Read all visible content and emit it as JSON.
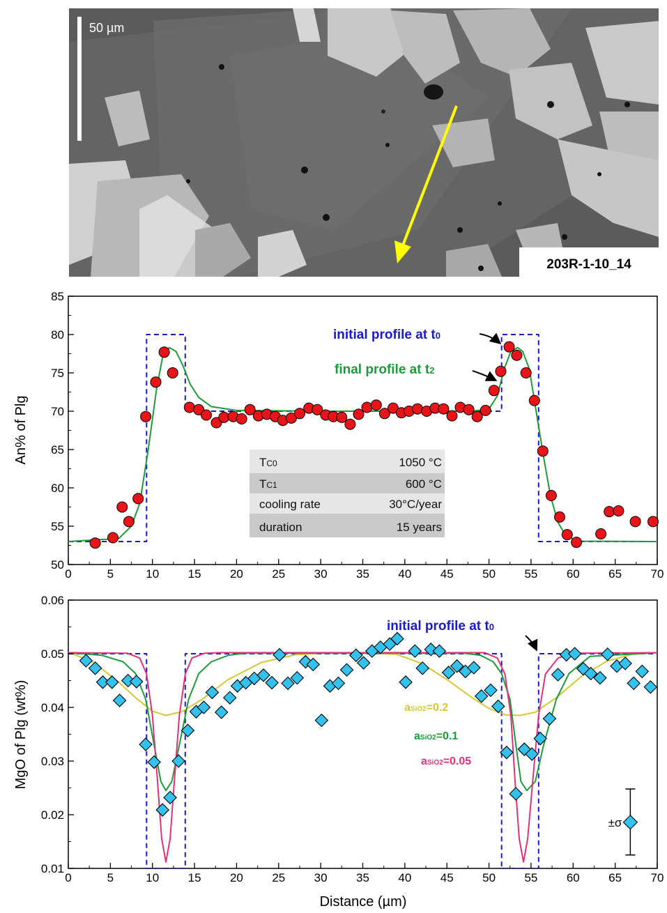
{
  "micrograph": {
    "scale_label": "50 µm",
    "sample_label": "203R-1-10_14"
  },
  "chart_data": [
    {
      "type": "scatter",
      "title": "",
      "xlabel": "",
      "ylabel": "An% of Plg",
      "xlim": [
        0,
        70
      ],
      "ylim": [
        50,
        85
      ],
      "x_ticks": [
        0,
        5,
        10,
        15,
        20,
        25,
        30,
        35,
        40,
        45,
        50,
        55,
        60,
        65,
        70
      ],
      "y_ticks": [
        50,
        55,
        60,
        65,
        70,
        75,
        80,
        85
      ],
      "grid": false,
      "annotations": [
        "initial profile at t",
        "final profile at t"
      ],
      "initial_subscript": "0",
      "final_subscript": "2",
      "params_table": [
        {
          "label": "T",
          "sub": "C0",
          "value": "1050 °C"
        },
        {
          "label": "T",
          "sub": "C1",
          "value": "600 °C"
        },
        {
          "label": "cooling rate",
          "sub": "",
          "value": "30°C/year"
        },
        {
          "label": "duration",
          "sub": "",
          "value": "15 years"
        }
      ],
      "series": [
        {
          "style": "dashed-blue",
          "x": [
            0,
            9.3,
            9.3,
            13.9,
            13.9,
            51.5,
            51.5,
            55.9,
            55.9,
            70
          ],
          "y": [
            53,
            53,
            80,
            80,
            70,
            70,
            80,
            80,
            53,
            53
          ]
        },
        {
          "style": "green-line",
          "x": [
            0,
            6,
            7.5,
            8.5,
            9.5,
            10.5,
            11.3,
            12,
            12.8,
            13.6,
            14.5,
            15.5,
            17,
            20,
            30,
            40,
            48,
            50,
            51,
            51.8,
            52.6,
            53.4,
            54,
            54.8,
            55.6,
            56.5,
            57.3,
            58.2,
            59,
            60,
            61,
            70
          ],
          "y": [
            53,
            53.4,
            55,
            58,
            65,
            73,
            77.6,
            78.3,
            77.8,
            76,
            73.5,
            71.8,
            70.6,
            70.1,
            70,
            70,
            70,
            70.3,
            72,
            75.5,
            77.8,
            78.3,
            77.8,
            75.5,
            70,
            64,
            59,
            55.5,
            54,
            53.3,
            53.05,
            53
          ]
        },
        {
          "style": "red-circles",
          "x": [
            3.2,
            5.3,
            6.4,
            7.2,
            8.3,
            9.2,
            10.4,
            11.4,
            12.4,
            14.4,
            15.5,
            16.4,
            17.6,
            18.5,
            19.6,
            20.6,
            21.6,
            22.6,
            23.6,
            24.6,
            25.5,
            26.5,
            27.5,
            28.6,
            29.6,
            30.6,
            31.5,
            32.5,
            33.5,
            34.5,
            35.5,
            36.6,
            37.6,
            38.6,
            39.6,
            40.5,
            41.5,
            42.6,
            43.6,
            44.6,
            45.6,
            46.6,
            47.6,
            48.6,
            49.6,
            50.6,
            51.4,
            52.4,
            53.3,
            54.4,
            55.4,
            56.4,
            57.4,
            58.4,
            59.3,
            60.4,
            63.3,
            64.3,
            65.4,
            67.4,
            69.5
          ],
          "y": [
            52.8,
            53.5,
            57.5,
            55.6,
            58.6,
            69.3,
            73.8,
            77.7,
            75,
            70.5,
            70.2,
            69.5,
            68.5,
            69.2,
            69.3,
            69,
            70.2,
            69.4,
            69.6,
            69.3,
            68.8,
            69.1,
            69.7,
            70.4,
            70.2,
            69.5,
            69.3,
            69.2,
            68.3,
            69.6,
            70.5,
            70.8,
            69.7,
            70.4,
            69.8,
            70,
            70.3,
            70,
            70.4,
            70.3,
            69.4,
            70.5,
            70.2,
            69.3,
            70.1,
            72.7,
            75.2,
            78.4,
            77.3,
            75,
            71.4,
            64.8,
            59,
            56.2,
            53.9,
            52.9,
            54,
            56.9,
            57,
            55.6,
            55.6
          ]
        }
      ]
    },
    {
      "type": "scatter",
      "title": "",
      "xlabel": "Distance (µm)",
      "ylabel": "MgO of Plg (wt%)",
      "xlim": [
        0,
        70
      ],
      "ylim": [
        0.01,
        0.06
      ],
      "x_ticks": [
        0,
        5,
        10,
        15,
        20,
        25,
        30,
        35,
        40,
        45,
        50,
        55,
        60,
        65,
        70
      ],
      "y_ticks": [
        "0.01",
        "0.02",
        "0.03",
        "0.04",
        "0.05",
        "0.06"
      ],
      "grid": false,
      "annotations": [
        "initial profile at t"
      ],
      "initial_subscript": "0",
      "curve_labels": [
        {
          "prefix": "a",
          "sub": "SiO2",
          "text": "=0.2",
          "color": "#d2c83a"
        },
        {
          "prefix": "a",
          "sub": "SiO2",
          "text": "=0.1",
          "color": "#1f9a3a"
        },
        {
          "prefix": "a",
          "sub": "SiO2",
          "text": "=0.05",
          "color": "#e0307a"
        }
      ],
      "error_bar": {
        "label": "±σ",
        "x": 66.8,
        "y": 0.0186,
        "low": 0.0125,
        "high": 0.0248
      },
      "series": [
        {
          "style": "dashed-blue",
          "x": [
            0,
            9.3,
            9.3,
            13.9,
            13.9,
            51.5,
            51.5,
            55.9,
            55.9,
            70
          ],
          "y": [
            0.05,
            0.05,
            0.01,
            0.01,
            0.05,
            0.05,
            0.01,
            0.01,
            0.05,
            0.05
          ]
        },
        {
          "style": "yellow-line",
          "x": [
            0,
            3,
            6,
            8,
            10,
            11.6,
            13.5,
            16,
            19,
            23,
            27,
            30,
            33,
            36,
            39,
            42,
            45,
            48,
            50,
            52,
            53.7,
            55.5,
            58,
            61,
            64,
            67,
            70
          ],
          "y": [
            0.0503,
            0.0484,
            0.0447,
            0.0418,
            0.0393,
            0.0385,
            0.0392,
            0.0416,
            0.0452,
            0.0484,
            0.0498,
            0.0501,
            0.0501,
            0.0501,
            0.0499,
            0.0482,
            0.0452,
            0.0418,
            0.0398,
            0.0386,
            0.0385,
            0.0391,
            0.0418,
            0.0458,
            0.0486,
            0.0499,
            0.0502
          ]
        },
        {
          "style": "green-line",
          "x": [
            0,
            4,
            6.5,
            8,
            9.2,
            10.2,
            11,
            11.6,
            12.3,
            13.2,
            14.3,
            15.5,
            17,
            19,
            21,
            47,
            49,
            50.5,
            51.5,
            52.5,
            53.2,
            53.8,
            54.5,
            55.5,
            56.5,
            58,
            59.5,
            62,
            70
          ],
          "y": [
            0.0502,
            0.0497,
            0.0485,
            0.0463,
            0.0415,
            0.033,
            0.0262,
            0.0245,
            0.0262,
            0.033,
            0.0415,
            0.0463,
            0.0485,
            0.0497,
            0.0501,
            0.0501,
            0.0497,
            0.0485,
            0.0463,
            0.0415,
            0.033,
            0.0262,
            0.0245,
            0.0262,
            0.033,
            0.0415,
            0.0463,
            0.0495,
            0.0502
          ]
        },
        {
          "style": "pink-line",
          "x": [
            0,
            7,
            8.5,
            9.3,
            10,
            10.6,
            11.1,
            11.6,
            12.1,
            12.6,
            13.2,
            13.9,
            14.7,
            16.2,
            18,
            49.5,
            51,
            51.9,
            52.6,
            53.1,
            53.6,
            54.1,
            54.6,
            55.2,
            55.9,
            56.7,
            58.2,
            60,
            70
          ],
          "y": [
            0.0502,
            0.0501,
            0.0492,
            0.0462,
            0.0385,
            0.0262,
            0.0155,
            0.0112,
            0.0155,
            0.0262,
            0.0385,
            0.0462,
            0.0492,
            0.0501,
            0.0502,
            0.0502,
            0.0492,
            0.0462,
            0.0385,
            0.0262,
            0.0155,
            0.0112,
            0.0155,
            0.0262,
            0.0385,
            0.0462,
            0.0492,
            0.0501,
            0.0502
          ]
        },
        {
          "style": "cyan-diamonds",
          "x": [
            2.1,
            3.2,
            4.1,
            5.2,
            6.1,
            7.1,
            8.1,
            9.2,
            10.2,
            11.2,
            12.1,
            13.1,
            14.2,
            15.2,
            16.1,
            17.1,
            18.2,
            19.2,
            20.1,
            21.1,
            22.1,
            23.2,
            24.2,
            25.1,
            26.1,
            27.2,
            28.2,
            29.1,
            30.1,
            31.1,
            32.1,
            33.1,
            34.2,
            35.1,
            36.1,
            37.1,
            38.2,
            39.1,
            40.1,
            41.2,
            42.1,
            43.1,
            44.1,
            45.2,
            46.2,
            47.2,
            48.2,
            49.1,
            50.2,
            51.1,
            52.1,
            53.2,
            54.2,
            55.1,
            56.1,
            57.2,
            58.2,
            59.2,
            60.2,
            61.2,
            62.1,
            63.2,
            64.1,
            65.2,
            66.2,
            67.2,
            68.2,
            69.2
          ],
          "y": [
            0.0487,
            0.0473,
            0.0447,
            0.0447,
            0.0413,
            0.045,
            0.0448,
            0.0331,
            0.0298,
            0.0209,
            0.0232,
            0.03,
            0.0357,
            0.0392,
            0.04,
            0.0428,
            0.0391,
            0.0418,
            0.044,
            0.0446,
            0.0454,
            0.046,
            0.0446,
            0.0498,
            0.0445,
            0.0455,
            0.0485,
            0.048,
            0.0376,
            0.044,
            0.0445,
            0.047,
            0.0497,
            0.0483,
            0.0505,
            0.0512,
            0.0518,
            0.0528,
            0.0447,
            0.0505,
            0.0473,
            0.0508,
            0.0505,
            0.0465,
            0.0477,
            0.0467,
            0.0474,
            0.0421,
            0.0432,
            0.0402,
            0.0316,
            0.0239,
            0.0322,
            0.0313,
            0.0342,
            0.0379,
            0.0461,
            0.0498,
            0.05,
            0.0472,
            0.0463,
            0.0455,
            0.0499,
            0.0477,
            0.0482,
            0.0445,
            0.0467,
            0.0438
          ]
        }
      ]
    }
  ]
}
